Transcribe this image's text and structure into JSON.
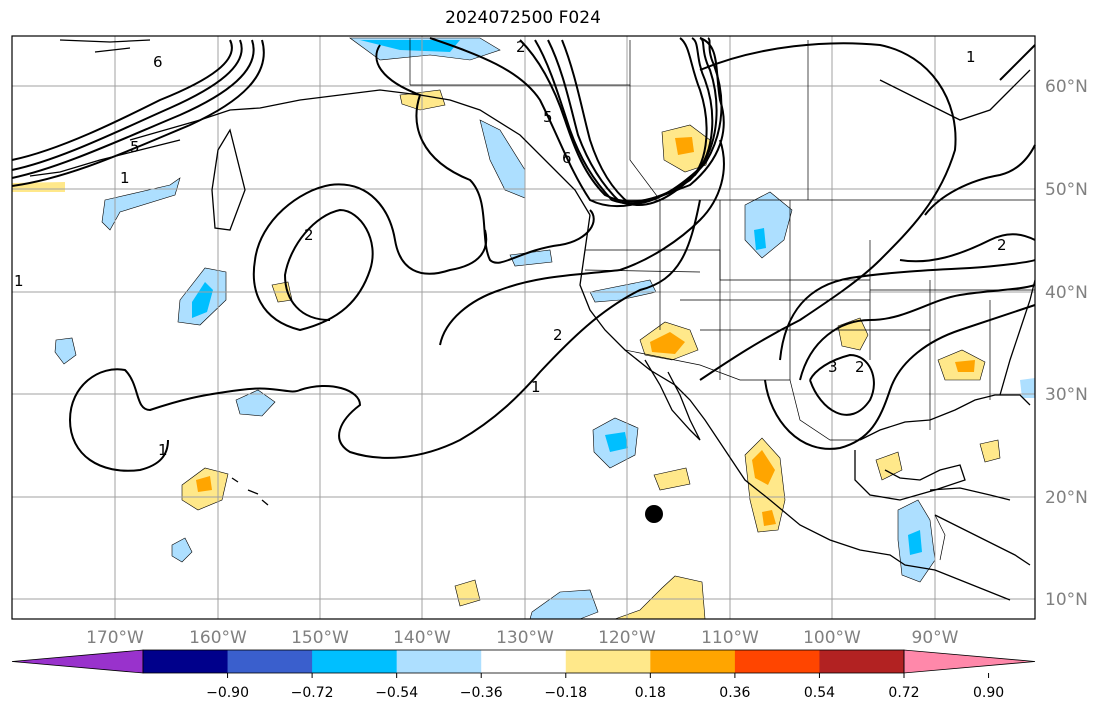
{
  "title": "2024072500 F024",
  "map": {
    "lat_labels": [
      "60°N",
      "50°N",
      "40°N",
      "30°N",
      "20°N",
      "10°N"
    ],
    "lon_labels": [
      "170°W",
      "160°W",
      "150°W",
      "140°W",
      "130°W",
      "120°W",
      "110°W",
      "100°W",
      "90°W"
    ],
    "contour_labels": [
      "1",
      "2",
      "3",
      "5",
      "6"
    ]
  },
  "colorbar": {
    "ticks": [
      "−0.90",
      "−0.72",
      "−0.54",
      "−0.36",
      "−0.18",
      "0.18",
      "0.36",
      "0.54",
      "0.72",
      "0.90"
    ],
    "colors": [
      "#9932CC",
      "#00008B",
      "#3A5FCD",
      "#00BFFF",
      "#ADDFFF",
      "#FFFFFF",
      "#FFE88A",
      "#FFA500",
      "#FF4500",
      "#B22222",
      "#FF88AA"
    ]
  },
  "colors": {
    "grid": "#a0a0a0",
    "coast": "#000000",
    "contour": "#000000",
    "label": "#808080"
  }
}
